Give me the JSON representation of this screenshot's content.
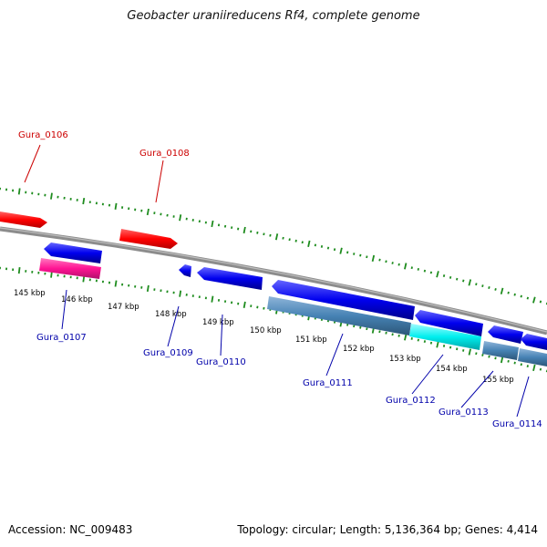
{
  "title": "Geobacter uraniireducens Rf4, complete genome",
  "footer": {
    "accession": "Accession: NC_009483",
    "summary": "Topology: circular; Length: 5,136,364 bp; Genes: 4,414"
  },
  "colors": {
    "backbone": "#8c8c8c",
    "ticks": "#1e8c1e",
    "label_forward": "#cc0000",
    "label_reverse": "#0000aa",
    "forward_gene": "#ff0000",
    "reverse_gene": "#0000ee",
    "rrna": "#ff1493",
    "trna": "#00e5ee",
    "misc": "#4682b4"
  },
  "kbp_labels": [
    "145 kbp",
    "146 kbp",
    "147 kbp",
    "148 kbp",
    "149 kbp",
    "150 kbp",
    "151 kbp",
    "152 kbp",
    "153 kbp",
    "154 kbp",
    "155 kbp"
  ],
  "gene_labels": [
    {
      "text": "Gura_0106",
      "strand": "forward"
    },
    {
      "text": "Gura_0108",
      "strand": "forward"
    },
    {
      "text": "Gura_0107",
      "strand": "reverse"
    },
    {
      "text": "Gura_0109",
      "strand": "reverse"
    },
    {
      "text": "Gura_0110",
      "strand": "reverse"
    },
    {
      "text": "Gura_0111",
      "strand": "reverse"
    },
    {
      "text": "Gura_0112",
      "strand": "reverse"
    },
    {
      "text": "Gura_0113",
      "strand": "reverse"
    },
    {
      "text": "Gura_0114",
      "strand": "reverse"
    }
  ]
}
